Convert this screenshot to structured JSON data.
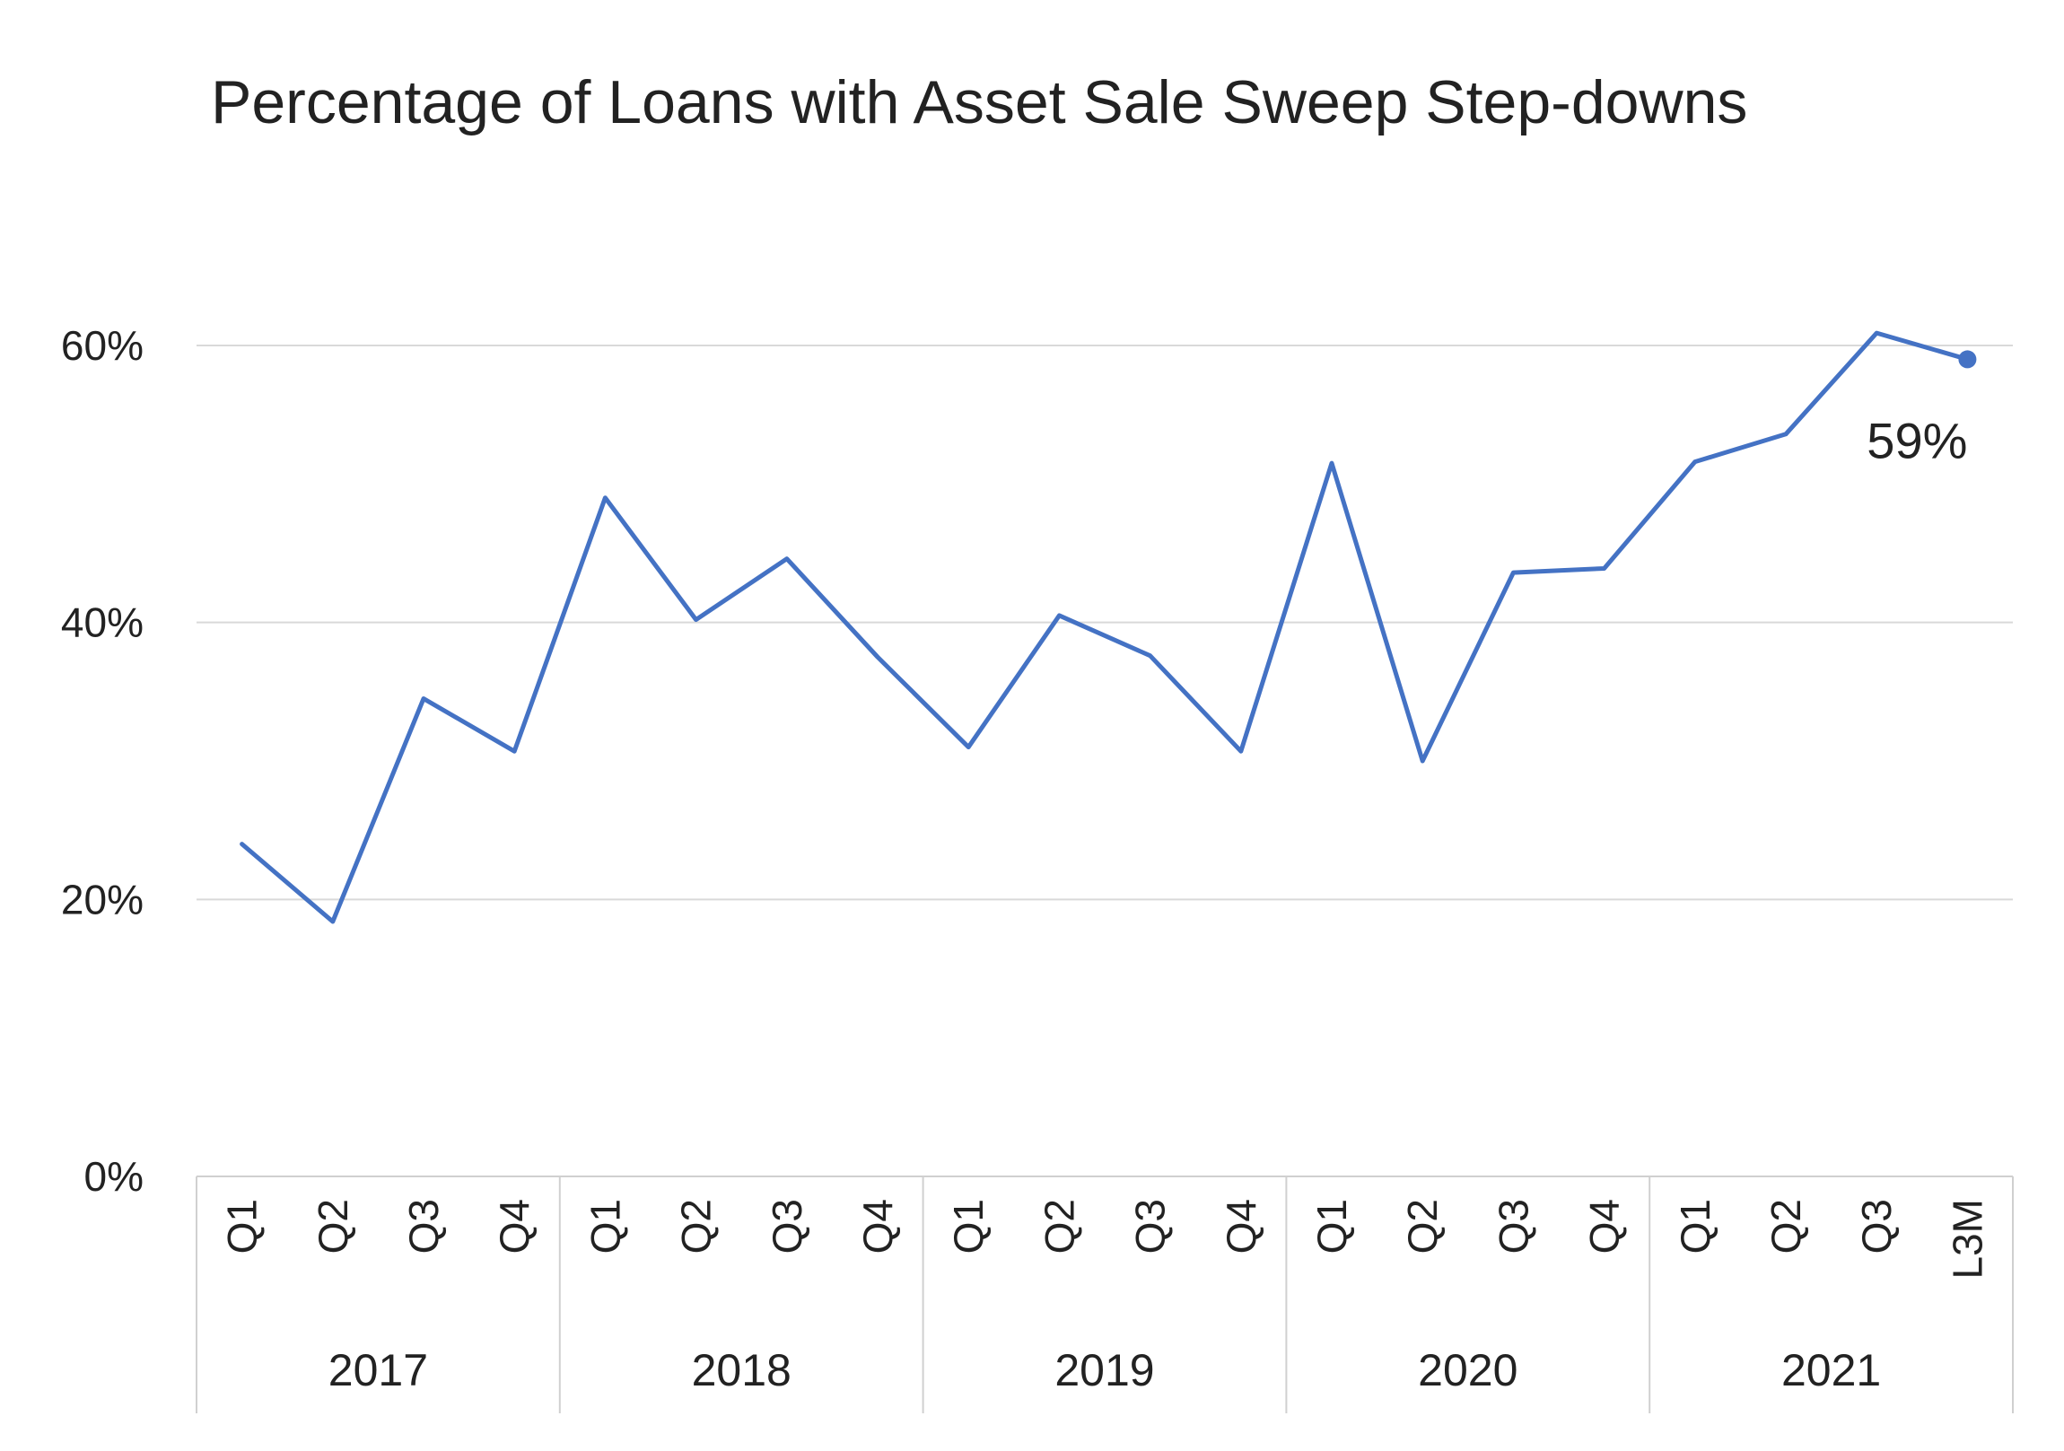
{
  "chart_data": {
    "type": "line",
    "title": "Percentage of Loans with Asset Sale Sweep Step-downs",
    "xlabel": "",
    "ylabel": "",
    "ylim": [
      0,
      0.6
    ],
    "yticks": [
      0,
      0.2,
      0.4,
      0.6
    ],
    "ytick_labels": [
      "0%",
      "20%",
      "40%",
      "60%"
    ],
    "grid": true,
    "legend": "none",
    "categories": [
      "Q1",
      "Q2",
      "Q3",
      "Q4",
      "Q1",
      "Q2",
      "Q3",
      "Q4",
      "Q1",
      "Q2",
      "Q3",
      "Q4",
      "Q1",
      "Q2",
      "Q3",
      "Q4",
      "Q1",
      "Q2",
      "Q3",
      "L3M"
    ],
    "groups": [
      {
        "label": "2017",
        "count": 4
      },
      {
        "label": "2018",
        "count": 4
      },
      {
        "label": "2019",
        "count": 4
      },
      {
        "label": "2020",
        "count": 4
      },
      {
        "label": "2021",
        "count": 4
      }
    ],
    "series": [
      {
        "color": "#4472C4",
        "values": [
          0.24,
          0.184,
          0.345,
          0.307,
          0.49,
          0.402,
          0.446,
          0.375,
          0.31,
          0.405,
          0.376,
          0.307,
          0.515,
          0.3,
          0.436,
          0.439,
          0.516,
          0.536,
          0.609,
          0.59
        ]
      }
    ],
    "annotations": [
      {
        "index": 19,
        "text": "59%"
      }
    ]
  }
}
